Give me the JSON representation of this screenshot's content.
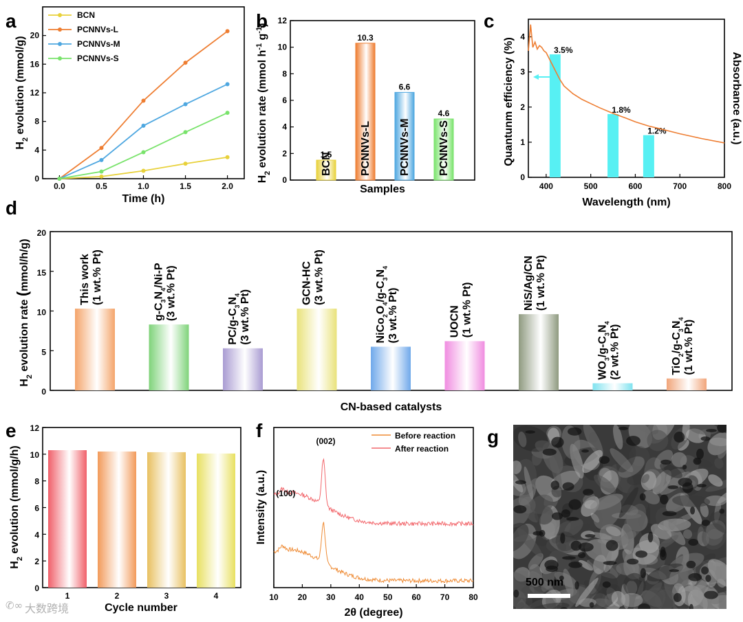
{
  "watermark": "大数跨境",
  "colors": {
    "bcn": "#e8d13a",
    "pcnnvs_l": "#ee7d31",
    "pcnnvs_m": "#4ea7e0",
    "pcnnvs_s": "#79e36b",
    "cyan": "#57f0f3",
    "spectrum": "#ee7d31",
    "highlight": "#e8101a",
    "before": "#ee8a33",
    "after": "#f2666b"
  },
  "chart_data": [
    {
      "id": "a",
      "panel_label": "a",
      "type": "line",
      "xlabel": "Time (h)",
      "ylabel": "H2 evolution (mmol/g)",
      "ylabel_parts": [
        "H",
        "2",
        " evolution (mmol/g)"
      ],
      "xlim": [
        -0.2,
        2.2
      ],
      "ylim": [
        0,
        24
      ],
      "xticks": [
        0.0,
        0.5,
        1.0,
        1.5,
        2.0
      ],
      "xtick_labels": [
        "0.0",
        "0.5",
        "1.0",
        "1.5",
        "2.0"
      ],
      "yticks": [
        0,
        4,
        8,
        12,
        16,
        20
      ],
      "ytick_labels": [
        "0",
        "4",
        "8",
        "12",
        "16",
        "20"
      ],
      "x": [
        0.0,
        0.5,
        1.0,
        1.5,
        2.0
      ],
      "series": [
        {
          "name": "BCN",
          "color": "#e8d13a",
          "values": [
            0,
            0.3,
            1.1,
            2.1,
            3.0
          ]
        },
        {
          "name": "PCNNVs-L",
          "color": "#ee7d31",
          "values": [
            0,
            4.3,
            10.9,
            16.2,
            20.6
          ]
        },
        {
          "name": "PCNNVs-M",
          "color": "#4ea7e0",
          "values": [
            0,
            2.6,
            7.4,
            10.4,
            13.2
          ]
        },
        {
          "name": "PCNNVs-S",
          "color": "#79e36b",
          "values": [
            0,
            1.0,
            3.7,
            6.5,
            9.2
          ]
        }
      ]
    },
    {
      "id": "b",
      "panel_label": "b",
      "type": "bar",
      "xlabel": "Samples",
      "ylabel": "H2 evolution rate (mmol h-1 g-1)",
      "ylabel_parts": [
        "H",
        "2",
        " evolution rate (mmol h",
        "-1",
        " g",
        "-1",
        ")"
      ],
      "ylim": [
        0,
        12
      ],
      "yticks": [
        0,
        2,
        4,
        6,
        8,
        10,
        12
      ],
      "ytick_labels": [
        "0",
        "2",
        "4",
        "6",
        "8",
        "10",
        "12"
      ],
      "categories": [
        "BCN",
        "PCNNVs-L",
        "PCNNVs-M",
        "PCNNVs-S"
      ],
      "values": [
        1.5,
        10.3,
        6.6,
        4.6
      ],
      "value_labels": [
        "1.5",
        "10.3",
        "6.6",
        "4.6"
      ],
      "colors": [
        "#e8d13a",
        "#ee7d31",
        "#4ea7e0",
        "#79e36b"
      ]
    },
    {
      "id": "c",
      "panel_label": "c",
      "type": "bar",
      "xlabel": "Wavelength (nm)",
      "ylabel": "Quantunm efficiency (%)",
      "y2label": "Absorbance (a.u.)",
      "xlim": [
        360,
        800
      ],
      "ylim": [
        0,
        4.5
      ],
      "xticks": [
        400,
        500,
        600,
        700,
        800
      ],
      "xtick_labels": [
        "400",
        "500",
        "600",
        "700",
        "800"
      ],
      "yticks": [
        0,
        1,
        2,
        3,
        4
      ],
      "ytick_labels": [
        "0",
        "1",
        "2",
        "3",
        "4"
      ],
      "bars": [
        {
          "x": 420,
          "value": 3.5,
          "label": "3.5%"
        },
        {
          "x": 550,
          "value": 1.8,
          "label": "1.8%"
        },
        {
          "x": 630,
          "value": 1.2,
          "label": "1.2%"
        }
      ],
      "absorbance_curve": {
        "x": [
          360,
          365,
          370,
          375,
          380,
          385,
          390,
          395,
          400,
          410,
          420,
          430,
          440,
          460,
          480,
          500,
          520,
          550,
          580,
          600,
          630,
          650,
          700,
          750,
          800
        ],
        "y": [
          3.6,
          4.35,
          3.7,
          3.85,
          3.65,
          3.75,
          3.7,
          3.6,
          3.55,
          3.3,
          3.05,
          2.8,
          2.6,
          2.38,
          2.22,
          2.1,
          1.98,
          1.82,
          1.68,
          1.58,
          1.46,
          1.4,
          1.24,
          1.1,
          0.98
        ]
      }
    },
    {
      "id": "d",
      "panel_label": "d",
      "type": "bar",
      "xlabel": "CN-based catalysts",
      "ylabel": "H2 evolution rate (mmol/h/g)",
      "ylabel_parts": [
        "H",
        "2",
        " evolution rate ",
        "(",
        "mmol/h/g)"
      ],
      "ylim": [
        0,
        20
      ],
      "yticks": [
        0,
        5,
        10,
        15,
        20
      ],
      "ytick_labels": [
        "0",
        "5",
        "10",
        "15",
        "20"
      ],
      "categories": [
        {
          "lines": [
            [
              {
                "t": "This work"
              }
            ],
            [
              {
                "t": "(1 wt.% Pt)"
              }
            ]
          ],
          "highlight": true
        },
        {
          "lines": [
            [
              {
                "t": "g-C"
              },
              {
                "t": "3",
                "sub": true
              },
              {
                "t": "N"
              },
              {
                "t": "4",
                "sub": true
              },
              {
                "t": "/Ni-P"
              }
            ],
            [
              {
                "t": "(3 wt.% Pt)"
              }
            ]
          ]
        },
        {
          "lines": [
            [
              {
                "t": "PC/g-C"
              },
              {
                "t": "3",
                "sub": true
              },
              {
                "t": "N"
              },
              {
                "t": "4",
                "sub": true
              }
            ],
            [
              {
                "t": "(3 wt.% Pt)"
              }
            ]
          ]
        },
        {
          "lines": [
            [
              {
                "t": "GCN-HC"
              }
            ],
            [
              {
                "t": "(3 wt.% Pt)"
              }
            ]
          ]
        },
        {
          "lines": [
            [
              {
                "t": "NiCo"
              },
              {
                "t": "2",
                "sub": true
              },
              {
                "t": "O"
              },
              {
                "t": "4",
                "sub": true
              },
              {
                "t": "/g-C"
              },
              {
                "t": "3",
                "sub": true
              },
              {
                "t": "N"
              },
              {
                "t": "4",
                "sub": true
              }
            ],
            [
              {
                "t": "(3 wt.% Pt)"
              }
            ]
          ]
        },
        {
          "lines": [
            [
              {
                "t": "UOCN"
              }
            ],
            [
              {
                "t": "(1 wt.% Pt)"
              }
            ]
          ]
        },
        {
          "lines": [
            [
              {
                "t": "NiS/Ag/CN"
              }
            ],
            [
              {
                "t": "(1 wt.% Pt)"
              }
            ]
          ]
        },
        {
          "lines": [
            [
              {
                "t": "WO"
              },
              {
                "t": "3",
                "sub": true
              },
              {
                "t": "/g-C"
              },
              {
                "t": "3",
                "sub": true
              },
              {
                "t": "N"
              },
              {
                "t": "4",
                "sub": true
              }
            ],
            [
              {
                "t": "(2 wt.% Pt)"
              }
            ]
          ]
        },
        {
          "lines": [
            [
              {
                "t": "TiO"
              },
              {
                "t": "2",
                "sub": true
              },
              {
                "t": "/g-C"
              },
              {
                "t": "3",
                "sub": true
              },
              {
                "t": "N"
              },
              {
                "t": "4",
                "sub": true
              }
            ],
            [
              {
                "t": "(1 wt.% Pt)"
              }
            ]
          ]
        }
      ],
      "values": [
        10.3,
        8.3,
        5.3,
        10.3,
        5.5,
        6.2,
        9.6,
        0.9,
        1.5
      ],
      "colors": [
        "#f4a46a",
        "#7fd37a",
        "#a99bd2",
        "#e9e27a",
        "#6fa8ea",
        "#f08ce0",
        "#8f9a80",
        "#7fe2ef",
        "#f1a57a"
      ]
    },
    {
      "id": "e",
      "panel_label": "e",
      "type": "bar",
      "xlabel": "Cycle number",
      "ylabel": "H2 evolution (mmol/g/h)",
      "ylabel_parts": [
        "H",
        "2",
        " evolution (mmol/g/h)"
      ],
      "ylim": [
        0,
        12
      ],
      "yticks": [
        0,
        2,
        4,
        6,
        8,
        10,
        12
      ],
      "ytick_labels": [
        "0",
        "2",
        "4",
        "6",
        "8",
        "10",
        "12"
      ],
      "categories": [
        "1",
        "2",
        "3",
        "4"
      ],
      "values": [
        10.3,
        10.2,
        10.15,
        10.05
      ],
      "colors": [
        "#f0606a",
        "#f29a5a",
        "#e8c060",
        "#e8e060"
      ]
    },
    {
      "id": "f",
      "panel_label": "f",
      "type": "line",
      "xlabel": "2θ (degree)",
      "ylabel": "Intensity (a.u.)",
      "xlim": [
        10,
        80
      ],
      "xticks": [
        10,
        20,
        30,
        40,
        50,
        60,
        70,
        80
      ],
      "xtick_labels": [
        "10",
        "20",
        "30",
        "40",
        "50",
        "60",
        "70",
        "80"
      ],
      "series": [
        {
          "name": "Before reaction",
          "color": "#ee8a33"
        },
        {
          "name": "After reaction",
          "color": "#f2666b"
        }
      ],
      "annotations": [
        {
          "text": "(100)",
          "x": 13
        },
        {
          "text": "(002)",
          "x": 27.5
        }
      ]
    },
    {
      "id": "g",
      "panel_label": "g",
      "type": "image",
      "scale_bar": "500 nm"
    }
  ]
}
